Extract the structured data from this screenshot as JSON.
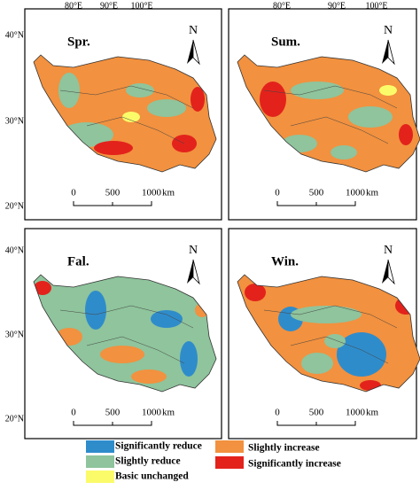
{
  "panels": [
    {
      "label": "Spr."
    },
    {
      "label": "Sum."
    },
    {
      "label": "Fal."
    },
    {
      "label": "Win."
    }
  ],
  "lon_labels": [
    "80°E",
    "90°E",
    "100°E"
  ],
  "lat_labels": [
    "40°N",
    "30°N",
    "20°N"
  ],
  "north": "N",
  "scale": {
    "ticks": [
      "0",
      "500",
      "1000"
    ],
    "unit": "km"
  },
  "legend": [
    {
      "label": "Significantly reduce",
      "color": "#2f8ccb"
    },
    {
      "label": "Slightly reduce",
      "color": "#8fc49c"
    },
    {
      "label": "Basic unchanged",
      "color": "#fbfb6a"
    },
    {
      "label": "Slightly increase",
      "color": "#f2913f"
    },
    {
      "label": "Significantly increase",
      "color": "#e3221c"
    }
  ]
}
